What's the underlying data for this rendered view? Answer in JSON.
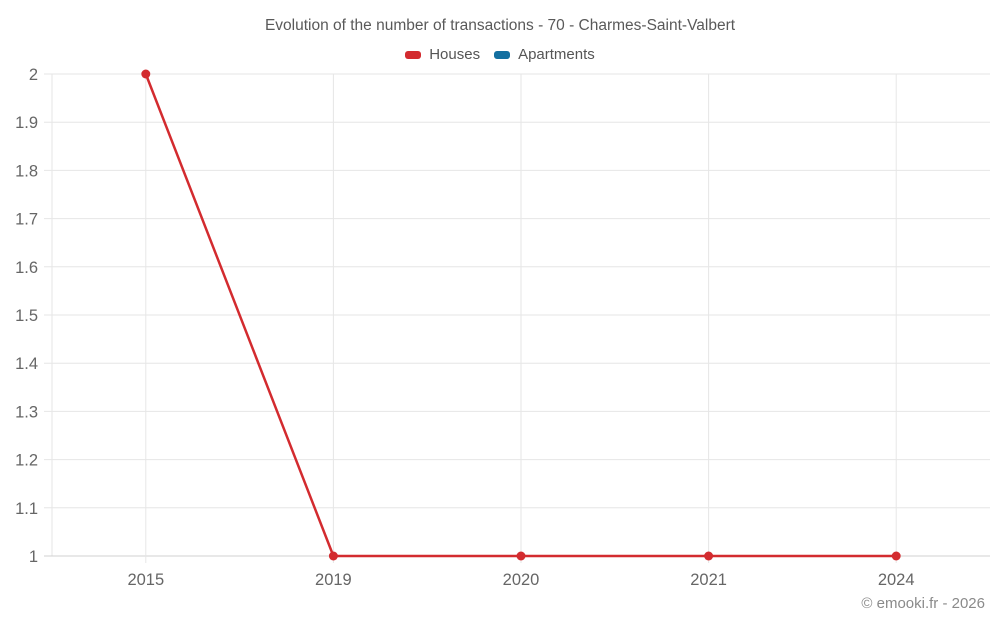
{
  "footer": "© emooki.fr - 2026",
  "colors": {
    "title_text": "#595959",
    "axis_label_text": "#666666",
    "gridline": "#e6e6e6",
    "axis_line": "#d0d0d0",
    "houses": "#d32b2f",
    "apartments": "#136fa0"
  },
  "chart_data": {
    "type": "line",
    "title": "Evolution of the number of transactions - 70 - Charmes-Saint-Valbert",
    "categories": [
      "2015",
      "2019",
      "2020",
      "2021",
      "2024"
    ],
    "series": [
      {
        "name": "Houses",
        "color": "#d32b2f",
        "values": [
          2,
          1,
          1,
          1,
          1
        ]
      },
      {
        "name": "Apartments",
        "color": "#136fa0",
        "values": []
      }
    ],
    "xlabel": "",
    "ylabel": "",
    "ylim": [
      1,
      2
    ],
    "y_ticks": [
      "2",
      "1.9",
      "1.8",
      "1.7",
      "1.6",
      "1.5",
      "1.4",
      "1.3",
      "1.2",
      "1.1",
      "1"
    ],
    "grid": true,
    "legend_position": "top"
  }
}
